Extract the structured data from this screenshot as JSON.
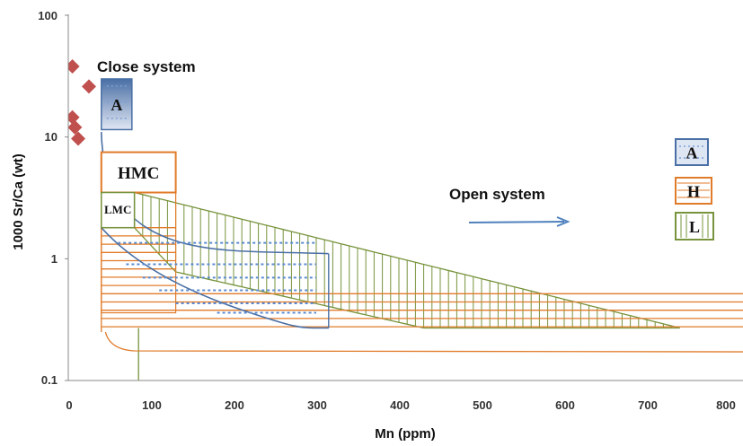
{
  "chart_data": {
    "type": "scatter",
    "title": "",
    "xlabel": "Mn (ppm)",
    "ylabel": "1000 Sr/Ca (wt)",
    "xlim": [
      0,
      800
    ],
    "ylim": [
      0.1,
      100
    ],
    "yscale": "log",
    "x_ticks": [
      "0",
      "100",
      "200",
      "300",
      "400",
      "500",
      "600",
      "700",
      "800"
    ],
    "y_ticks": [
      "0.1",
      "1",
      "10",
      "100"
    ],
    "grid": false,
    "colors": {
      "aragonite": "#4a6fa5",
      "high_mg_calcite": "#e07b2a",
      "low_mg_calcite": "#77933c",
      "points": "#c0504d",
      "arrow": "#4f81bd"
    },
    "series": [
      {
        "values": [
          {
            "x": 5,
            "y": 38
          },
          {
            "x": 25,
            "y": 26
          },
          {
            "x": 5,
            "y": 14.5
          },
          {
            "x": 8,
            "y": 12
          },
          {
            "x": 12,
            "y": 9.7
          }
        ]
      }
    ],
    "annotations": [
      "Close system",
      "Open system"
    ],
    "boxes": [
      {
        "label": "A",
        "xmin": 40,
        "xmax": 77,
        "ymin": 11.5,
        "ymax": 30
      },
      {
        "label": "HMC",
        "xmin": 40,
        "xmax": 130,
        "ymin": 3.5,
        "ymax": 7.5
      },
      {
        "label": "LMC",
        "xmin": 40,
        "xmax": 80,
        "ymin": 1.8,
        "ymax": 3.5
      }
    ],
    "legend": {
      "position": "right",
      "entries": [
        "A",
        "H",
        "L"
      ]
    }
  }
}
